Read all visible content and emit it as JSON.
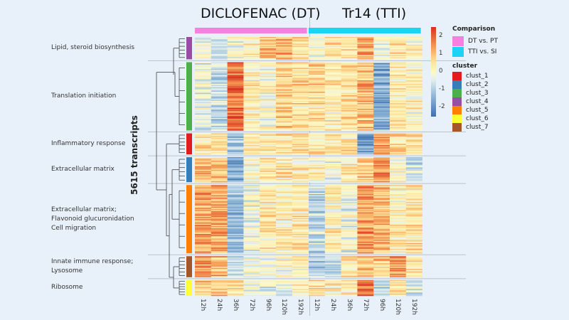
{
  "chart_data": {
    "type": "heatmap",
    "title_left": "DICLOFENAC (DT)",
    "title_right": "Tr14 (TTI)",
    "ylabel": "5615 transcripts",
    "groups": [
      {
        "name": "DT vs. PT",
        "title": "DICLOFENAC (DT)",
        "color": "#f77fe0",
        "columns": [
          "12h",
          "24h",
          "36h",
          "72h",
          "96h",
          "120h",
          "192h"
        ]
      },
      {
        "name": "TTI vs. SI",
        "title": "Tr14 (TTI)",
        "color": "#1dd3f5",
        "columns": [
          "12h",
          "24h",
          "36h",
          "72h",
          "96h",
          "120h",
          "192h"
        ]
      }
    ],
    "colorbar": {
      "min": -2.5,
      "max": 2.5,
      "ticks": [
        2,
        1,
        0,
        -1,
        -2
      ],
      "low_color": "#3b6fb0",
      "mid_color": "#fdf8c4",
      "high_color": "#d7301f"
    },
    "legend": {
      "comparison_title": "Comparison",
      "comparison": [
        {
          "label": "DT vs. PT",
          "color": "#f77fe0"
        },
        {
          "label": "TTI vs. SI",
          "color": "#1dd3f5"
        }
      ],
      "cluster_title": "cluster",
      "clusters": [
        {
          "label": "clust_1",
          "color": "#e41a1c"
        },
        {
          "label": "clust_2",
          "color": "#377eb8"
        },
        {
          "label": "clust_3",
          "color": "#4daf4a"
        },
        {
          "label": "clust_4",
          "color": "#984ea3"
        },
        {
          "label": "clust_5",
          "color": "#ff7f00"
        },
        {
          "label": "clust_6",
          "color": "#ffff33"
        },
        {
          "label": "clust_7",
          "color": "#a65628"
        }
      ]
    },
    "row_clusters": [
      {
        "cluster": "clust_4",
        "annotation": [
          "Lipid, steroid biosynthesis"
        ],
        "rel_size": 0.085,
        "means": [
          -0.3,
          -0.6,
          -0.2,
          0.1,
          0.9,
          1.0,
          0.6,
          -0.2,
          0.5,
          0.4,
          1.1,
          -0.4,
          0.4,
          0.1
        ]
      },
      {
        "cluster": "clust_3",
        "annotation": [
          "Translation initiation"
        ],
        "rel_size": 0.26,
        "means": [
          -0.4,
          -0.8,
          1.8,
          0.2,
          -0.1,
          0.7,
          0.5,
          0.6,
          0.3,
          0.5,
          1.0,
          -1.6,
          0.3,
          0.1
        ]
      },
      {
        "cluster": "clust_1",
        "annotation": [
          "Inflammatory response"
        ],
        "rel_size": 0.08,
        "means": [
          0.5,
          0.3,
          -1.0,
          0.4,
          0.3,
          0.5,
          0.4,
          0.5,
          0.4,
          0.4,
          -1.6,
          1.3,
          0.6,
          0.5
        ]
      },
      {
        "cluster": "clust_2",
        "annotation": [
          "Extracellular matrix"
        ],
        "rel_size": 0.095,
        "means": [
          1.0,
          1.0,
          -1.5,
          0.1,
          0.4,
          0.4,
          0.3,
          0.2,
          -0.2,
          0.3,
          0.8,
          1.5,
          0.1,
          -0.6
        ]
      },
      {
        "cluster": "clust_5",
        "annotation": [
          "Extracellular matrix;",
          "Flavonoid glucuronidation",
          "Cell migration"
        ],
        "rel_size": 0.26,
        "means": [
          1.2,
          1.2,
          -1.3,
          -0.2,
          0.3,
          0.2,
          0.3,
          -0.9,
          0.2,
          -0.3,
          1.4,
          1.0,
          0.2,
          0.4
        ]
      },
      {
        "cluster": "clust_7",
        "annotation": [
          "Innate immune response;",
          "Lysosome"
        ],
        "rel_size": 0.08,
        "means": [
          1.3,
          1.1,
          -0.8,
          -0.1,
          -0.2,
          -0.1,
          0.1,
          -1.0,
          -1.0,
          0.3,
          0.9,
          0.8,
          1.4,
          0.4
        ]
      },
      {
        "cluster": "clust_6",
        "annotation": [
          "Ribosome"
        ],
        "rel_size": 0.06,
        "means": [
          0.9,
          0.9,
          0.5,
          -0.3,
          -0.6,
          -0.4,
          0.1,
          0.4,
          0.3,
          0.3,
          1.7,
          -0.8,
          0.5,
          -0.6
        ]
      }
    ]
  }
}
